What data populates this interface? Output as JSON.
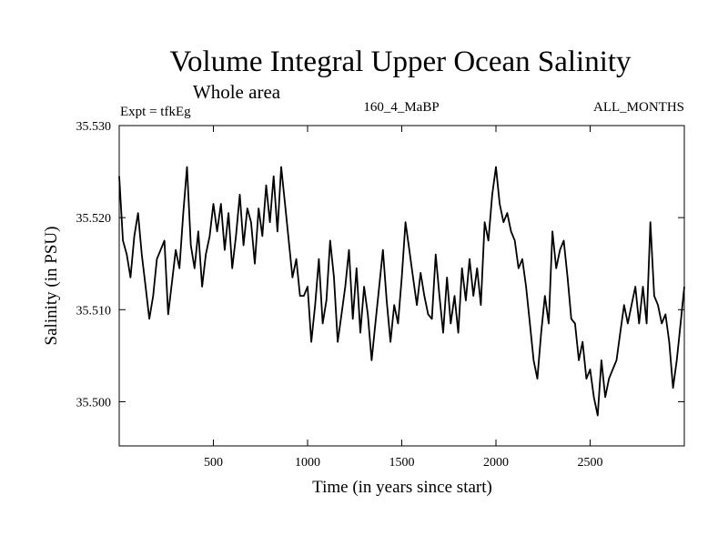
{
  "chart_data": {
    "type": "line",
    "title": "Volume Integral Upper Ocean Salinity",
    "subtitle": "Whole area",
    "annotations": {
      "experiment": "Expt = tfkEg",
      "run": "160_4_MaBP",
      "months": "ALL_MONTHS"
    },
    "xlabel": "Time (in years since start)",
    "ylabel": "Salinity (in PSU)",
    "xlim": [
      0,
      3000
    ],
    "ylim": [
      35.4952,
      35.53
    ],
    "x_ticks": [
      500,
      1000,
      1500,
      2000,
      2500
    ],
    "y_ticks": [
      35.5,
      35.51,
      35.52,
      35.53
    ],
    "x_tick_labels": [
      "500",
      "1000",
      "1500",
      "2000",
      "2500"
    ],
    "y_tick_labels": [
      "35.500",
      "35.510",
      "35.520",
      "35.530"
    ],
    "grid": false,
    "line_color": "#000000",
    "series": [
      {
        "x": [
          0,
          20,
          40,
          60,
          80,
          100,
          120,
          140,
          160,
          180,
          200,
          240,
          260,
          280,
          300,
          320,
          340,
          360,
          380,
          400,
          420,
          440,
          460,
          480,
          500,
          520,
          540,
          560,
          580,
          600,
          620,
          640,
          660,
          680,
          700,
          720,
          740,
          760,
          780,
          800,
          820,
          840,
          860,
          880,
          900,
          920,
          940,
          960,
          980,
          1000,
          1020,
          1040,
          1060,
          1080,
          1100,
          1120,
          1140,
          1160,
          1180,
          1200,
          1220,
          1240,
          1260,
          1280,
          1300,
          1320,
          1340,
          1360,
          1380,
          1400,
          1420,
          1440,
          1460,
          1480,
          1500,
          1520,
          1540,
          1560,
          1580,
          1600,
          1620,
          1640,
          1660,
          1680,
          1700,
          1720,
          1740,
          1760,
          1780,
          1800,
          1820,
          1840,
          1860,
          1880,
          1900,
          1920,
          1940,
          1960,
          1980,
          2000,
          2020,
          2040,
          2060,
          2080,
          2100,
          2120,
          2140,
          2160,
          2180,
          2200,
          2220,
          2240,
          2260,
          2280,
          2300,
          2320,
          2340,
          2360,
          2380,
          2400,
          2420,
          2440,
          2460,
          2480,
          2500,
          2520,
          2540,
          2560,
          2580,
          2600,
          2620,
          2640,
          2660,
          2680,
          2700,
          2720,
          2740,
          2760,
          2780,
          2800,
          2820,
          2840,
          2860,
          2880,
          2900,
          2920,
          2940,
          2960,
          2980,
          3000
        ],
        "y": [
          35.5245,
          35.5175,
          35.516,
          35.5135,
          35.518,
          35.5205,
          35.516,
          35.5125,
          35.509,
          35.5115,
          35.5155,
          35.5175,
          35.5095,
          35.513,
          35.5165,
          35.5145,
          35.5205,
          35.5255,
          35.517,
          35.5145,
          35.5185,
          35.5125,
          35.516,
          35.518,
          35.5215,
          35.5185,
          35.5215,
          35.5165,
          35.5205,
          35.5145,
          35.518,
          35.5225,
          35.517,
          35.521,
          35.5195,
          35.515,
          35.521,
          35.518,
          35.5235,
          35.5195,
          35.5245,
          35.5185,
          35.5255,
          35.5215,
          35.5175,
          35.5135,
          35.5155,
          35.5115,
          35.5115,
          35.5125,
          35.5065,
          35.5105,
          35.5155,
          35.5085,
          35.511,
          35.5175,
          35.5135,
          35.5065,
          35.5095,
          35.5125,
          35.5165,
          35.509,
          35.5145,
          35.5075,
          35.5125,
          35.5095,
          35.5045,
          35.5085,
          35.5125,
          35.5165,
          35.511,
          35.5065,
          35.5105,
          35.5085,
          35.5135,
          35.5195,
          35.5165,
          35.5135,
          35.5105,
          35.514,
          35.5115,
          35.5095,
          35.509,
          35.516,
          35.5115,
          35.5075,
          35.5135,
          35.5085,
          35.5115,
          35.5075,
          35.5145,
          35.511,
          35.5155,
          35.5115,
          35.5145,
          35.5105,
          35.5195,
          35.5175,
          35.5225,
          35.5255,
          35.5215,
          35.5195,
          35.5205,
          35.5185,
          35.5175,
          35.5145,
          35.5155,
          35.5125,
          35.5085,
          35.5045,
          35.5025,
          35.5075,
          35.5115,
          35.5085,
          35.5185,
          35.5145,
          35.5165,
          35.5175,
          35.5135,
          35.509,
          35.5085,
          35.5045,
          35.5065,
          35.5025,
          35.5035,
          35.5005,
          35.4985,
          35.5045,
          35.5005,
          35.5025,
          35.5035,
          35.5045,
          35.5075,
          35.5105,
          35.5085,
          35.5105,
          35.5125,
          35.5085,
          35.5125,
          35.5085,
          35.5195,
          35.5115,
          35.5105,
          35.5085,
          35.5095,
          35.5065,
          35.5015,
          35.5045,
          35.5085,
          35.5125
        ]
      }
    ]
  }
}
